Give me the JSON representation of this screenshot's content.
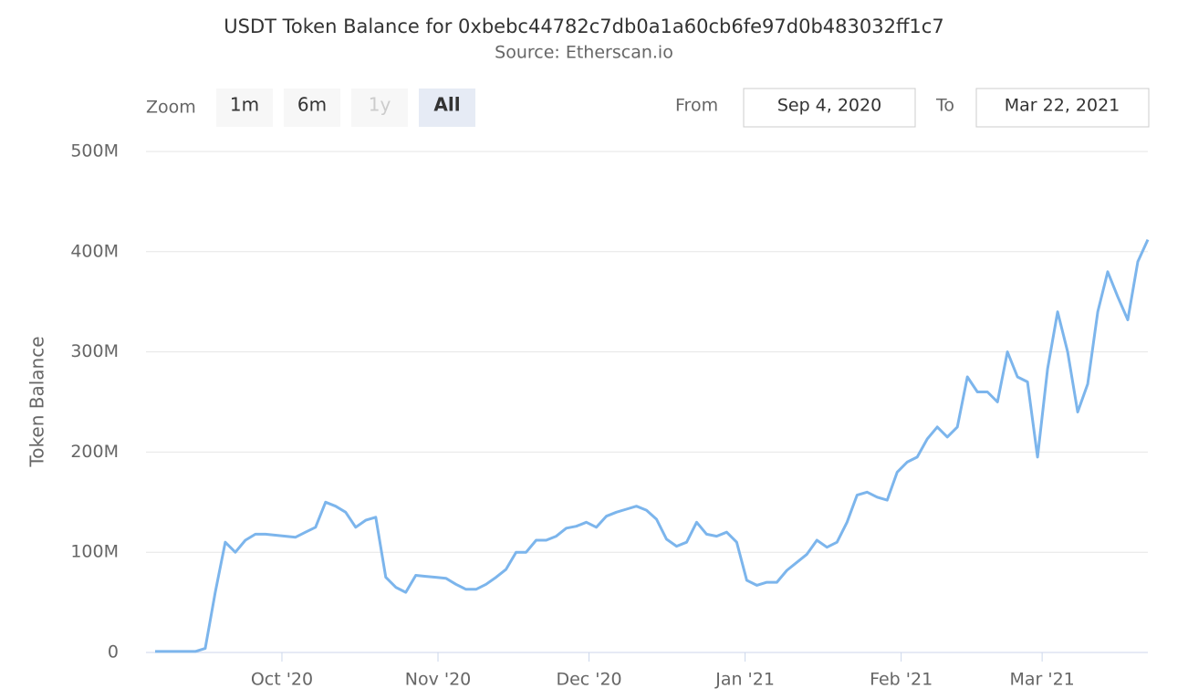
{
  "chart_data": {
    "type": "line",
    "title": "USDT Token Balance for 0xbebc44782c7db0a1a60cb6fe97d0b483032ff1c7",
    "subtitle": "Source: Etherscan.io",
    "y_label": "Token Balance",
    "zoom_label": "Zoom",
    "zoom_buttons": [
      "1m",
      "6m",
      "1y",
      "All"
    ],
    "zoom_selected": 3,
    "zoom_disabled": [
      2
    ],
    "from_label": "From",
    "to_label": "To",
    "xlim": [
      "Sep 4, 2020",
      "Mar 22, 2021"
    ],
    "xticks": [
      {
        "value": "2020-10",
        "label": "Oct '20"
      },
      {
        "value": "2020-11",
        "label": "Nov '20"
      },
      {
        "value": "2020-12",
        "label": "Dec '20"
      },
      {
        "value": "2021-01",
        "label": "Jan '21"
      },
      {
        "value": "2021-02",
        "label": "Feb '21"
      },
      {
        "value": "2021-03",
        "label": "Mar '21"
      }
    ],
    "ylim": [
      0,
      500000000
    ],
    "yticks": [
      0,
      {
        "value": 100000000,
        "label": "100M"
      },
      {
        "value": 200000000,
        "label": "200M"
      },
      {
        "value": 300000000,
        "label": "300M"
      },
      {
        "value": 400000000,
        "label": "400M"
      },
      {
        "value": 500000000,
        "label": "500M"
      }
    ],
    "grid": true,
    "color": "#7cb5ec",
    "values": [
      1000000,
      1000000,
      1000000,
      1000000,
      1000000,
      4000000,
      60000000,
      110000000,
      100000000,
      112000000,
      118000000,
      118000000,
      117000000,
      116000000,
      115000000,
      120000000,
      125000000,
      150000000,
      146000000,
      140000000,
      125000000,
      132000000,
      135000000,
      75000000,
      65000000,
      60000000,
      77000000,
      76000000,
      75000000,
      74000000,
      68000000,
      63000000,
      63000000,
      68000000,
      75000000,
      83000000,
      100000000,
      100000000,
      112000000,
      112000000,
      116000000,
      124000000,
      126000000,
      130000000,
      125000000,
      136000000,
      140000000,
      143000000,
      146000000,
      142000000,
      133000000,
      113000000,
      106000000,
      110000000,
      130000000,
      118000000,
      116000000,
      120000000,
      110000000,
      72000000,
      67000000,
      70000000,
      70000000,
      82000000,
      90000000,
      98000000,
      112000000,
      105000000,
      110000000,
      130000000,
      157000000,
      160000000,
      155000000,
      152000000,
      180000000,
      190000000,
      195000000,
      213000000,
      225000000,
      215000000,
      225000000,
      275000000,
      260000000,
      260000000,
      250000000,
      300000000,
      275000000,
      270000000,
      195000000,
      283000000,
      340000000,
      300000000,
      240000000,
      268000000,
      340000000,
      380000000,
      355000000,
      332000000,
      390000000,
      412000000
    ]
  }
}
